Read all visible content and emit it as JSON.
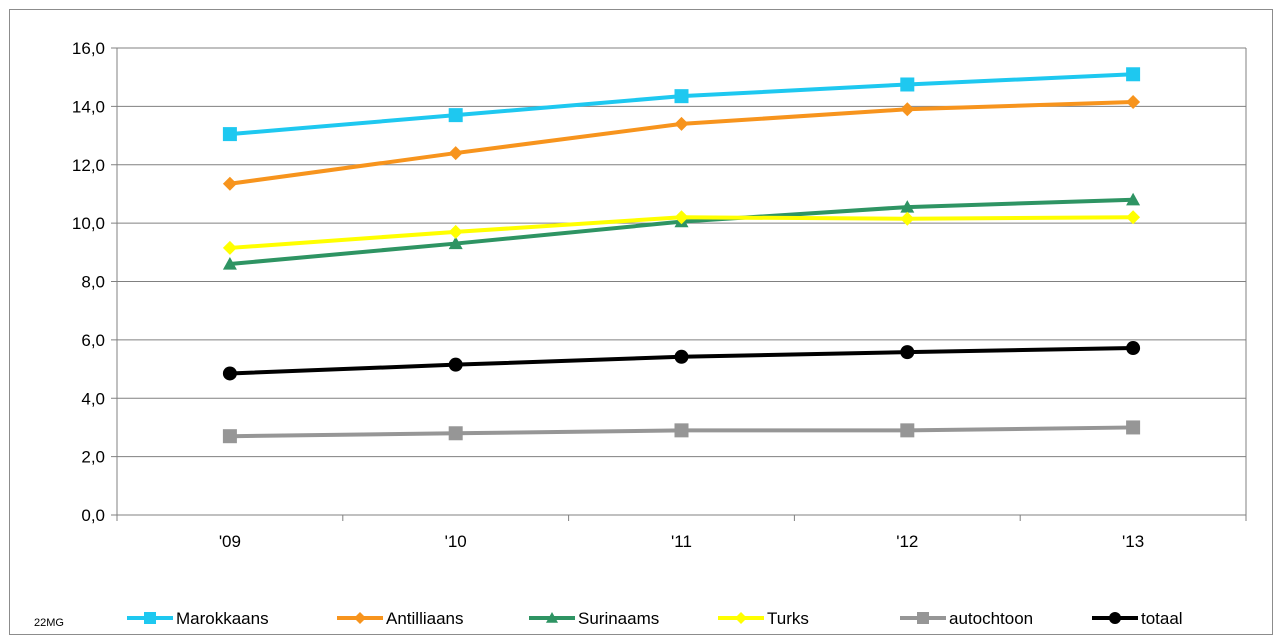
{
  "chart_data": {
    "type": "line",
    "categories": [
      "'09",
      "'10",
      "'11",
      "'12",
      "'13"
    ],
    "ylim": [
      0,
      16
    ],
    "yticks": [
      0,
      2,
      4,
      6,
      8,
      10,
      12,
      14,
      16
    ],
    "ytick_labels": [
      "0,0",
      "2,0",
      "4,0",
      "6,0",
      "8,0",
      "10,0",
      "12,0",
      "14,0",
      "16,0"
    ],
    "grid": true,
    "legend_position": "bottom",
    "series": [
      {
        "name": "Marokkaans",
        "color": "#1ec8f0",
        "marker": "square",
        "values": [
          13.05,
          13.7,
          14.35,
          14.75,
          15.1
        ]
      },
      {
        "name": "Antilliaans",
        "color": "#f7941d",
        "marker": "diamond",
        "values": [
          11.35,
          12.4,
          13.4,
          13.9,
          14.15
        ]
      },
      {
        "name": "Surinaams",
        "color": "#2e9463",
        "marker": "triangle",
        "values": [
          8.6,
          9.3,
          10.05,
          10.55,
          10.8
        ]
      },
      {
        "name": "Turks",
        "color": "#ffff00",
        "marker": "diamond",
        "values": [
          9.15,
          9.7,
          10.2,
          10.15,
          10.2
        ]
      },
      {
        "name": "autochtoon",
        "color": "#969696",
        "marker": "square",
        "values": [
          2.7,
          2.8,
          2.9,
          2.9,
          3.0
        ]
      },
      {
        "name": "totaal",
        "color": "#000000",
        "marker": "circle",
        "values": [
          4.85,
          5.15,
          5.42,
          5.58,
          5.72
        ]
      }
    ]
  },
  "footnote": "22MG"
}
